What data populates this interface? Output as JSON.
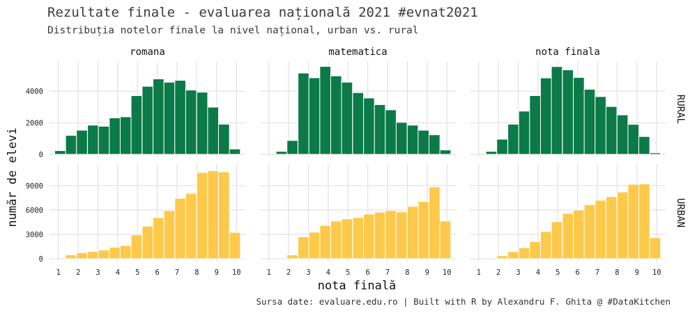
{
  "title": "Rezultate finale - evaluarea națională 2021 #evnat2021",
  "subtitle": "Distribuția notelor finale la nivel național, urban vs. rural",
  "caption": "Sursa date: evaluare.edu.ro | Built with R by Alexandru F. Ghita @ #DataKitchen",
  "chart_data": {
    "type": "bar",
    "subtype": "faceted histogram",
    "xlabel": "nota finală",
    "ylabel": "număr de elevi",
    "x_ticks": [
      1,
      2,
      3,
      4,
      5,
      6,
      7,
      8,
      9,
      10
    ],
    "bin_centers": [
      1.09,
      1.64,
      2.19,
      2.75,
      3.3,
      3.85,
      4.4,
      4.95,
      5.51,
      6.06,
      6.61,
      7.16,
      7.71,
      8.27,
      8.82,
      9.37,
      9.92
    ],
    "columns": [
      "romana",
      "matematica",
      "nota finala"
    ],
    "rows": [
      {
        "name": "RURAL",
        "color": "#0b7a48",
        "y_ticks": [
          0,
          2000,
          4000
        ],
        "ylim": [
          0,
          5900
        ],
        "series": [
          {
            "facet": "romana",
            "values": [
              235,
              1200,
              1530,
              1850,
              1780,
              2310,
              2380,
              3720,
              4310,
              4780,
              4570,
              4690,
              4070,
              3940,
              2990,
              1910,
              340
            ]
          },
          {
            "facet": "matematica",
            "values": [
              0,
              190,
              880,
              5150,
              4850,
              5570,
              4970,
              4570,
              3910,
              3570,
              3150,
              2820,
              2030,
              1850,
              1530,
              1240,
              280
            ]
          },
          {
            "facet": "nota finala",
            "values": [
              0,
              190,
              960,
              1910,
              2740,
              3720,
              4840,
              5560,
              5350,
              4870,
              4120,
              3660,
              3030,
              2500,
              1900,
              1130,
              100
            ]
          }
        ]
      },
      {
        "name": "URBAN",
        "color": "#fdc94a",
        "y_ticks": [
          0,
          3000,
          6000,
          9000
        ],
        "ylim": [
          0,
          11600
        ],
        "series": [
          {
            "facet": "romana",
            "values": [
              0,
              480,
              740,
              880,
              1080,
              1420,
              1620,
              2930,
              4010,
              5060,
              5910,
              7440,
              8040,
              10600,
              10820,
              10680,
              3240
            ]
          },
          {
            "facet": "matematica",
            "values": [
              0,
              0,
              480,
              2700,
              3270,
              4100,
              4640,
              4900,
              5070,
              5500,
              5730,
              5930,
              5760,
              6440,
              7040,
              8830,
              4640
            ]
          },
          {
            "facet": "nota finala",
            "values": [
              0,
              0,
              370,
              880,
              1360,
              2100,
              3350,
              4550,
              5570,
              5990,
              6650,
              7190,
              7640,
              8210,
              9150,
              9200,
              2590
            ]
          }
        ]
      }
    ]
  }
}
